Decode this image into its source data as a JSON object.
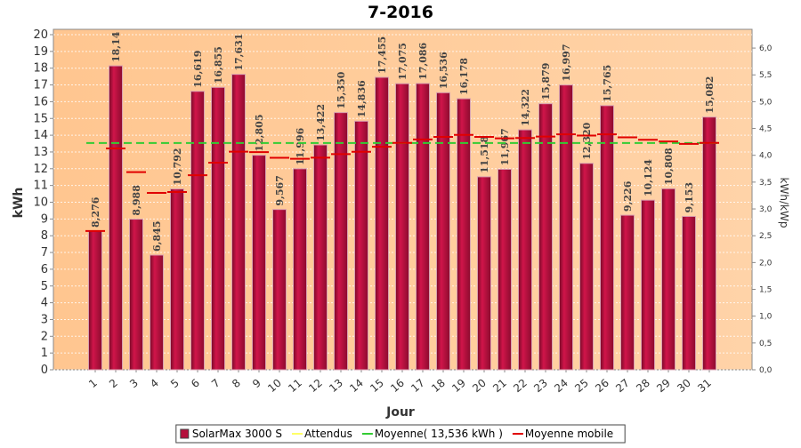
{
  "chart_data": {
    "type": "bar",
    "title": "7-2016",
    "x_label": "Jour",
    "y_label": "kWh",
    "y2_label": "kWh/kWp",
    "categories": [
      "1",
      "2",
      "3",
      "4",
      "5",
      "6",
      "7",
      "8",
      "9",
      "10",
      "11",
      "12",
      "13",
      "14",
      "15",
      "16",
      "17",
      "18",
      "19",
      "20",
      "21",
      "22",
      "23",
      "24",
      "25",
      "26",
      "27",
      "28",
      "29",
      "30",
      "31"
    ],
    "ylim": [
      0,
      20
    ],
    "yticks": [
      0,
      1,
      2,
      3,
      4,
      5,
      6,
      7,
      8,
      9,
      10,
      11,
      12,
      13,
      14,
      15,
      16,
      17,
      18,
      19,
      20
    ],
    "y2lim": [
      0,
      6.25
    ],
    "y2ticks": [
      {
        "value": 0,
        "label": "0,0"
      },
      {
        "value": 0.5,
        "label": "0,5"
      },
      {
        "value": 1,
        "label": "1,0"
      },
      {
        "value": 1.5,
        "label": "1,5"
      },
      {
        "value": 2,
        "label": "2,0"
      },
      {
        "value": 2.5,
        "label": "2,5"
      },
      {
        "value": 3,
        "label": "3,0"
      },
      {
        "value": 3.5,
        "label": "3,5"
      },
      {
        "value": 4,
        "label": "4,0"
      },
      {
        "value": 4.5,
        "label": "4,5"
      },
      {
        "value": 5,
        "label": "5,0"
      },
      {
        "value": 5.5,
        "label": "5,5"
      },
      {
        "value": 6,
        "label": "6,0"
      }
    ],
    "grid": true,
    "series": [
      {
        "name": "SolarMax 3000 S",
        "color": "#b5103c",
        "type": "bar",
        "values": [
          8.276,
          18.14,
          8.988,
          6.845,
          10.792,
          16.619,
          16.855,
          17.631,
          12.805,
          9.567,
          11.996,
          13.422,
          15.35,
          14.836,
          17.455,
          17.075,
          17.086,
          16.536,
          16.178,
          11.518,
          11.967,
          14.322,
          15.879,
          16.997,
          12.32,
          15.765,
          9.226,
          10.124,
          10.808,
          9.153,
          15.082
        ],
        "value_labels": [
          "8,276",
          "18,14",
          "8,988",
          "6,845",
          "10,792",
          "16,619",
          "16,855",
          "17,631",
          "12,805",
          "9,567",
          "11,996",
          "13,422",
          "15,350",
          "14,836",
          "17,455",
          "17,075",
          "17,086",
          "16,536",
          "16,178",
          "11,518",
          "11,967",
          "14,322",
          "15,879",
          "16,997",
          "12,320",
          "15,765",
          "9,226",
          "10,124",
          "10,808",
          "9,153",
          "15,082"
        ]
      },
      {
        "name": "Attendus",
        "color": "#ffff66",
        "type": "legend"
      },
      {
        "name": "Moyenne( 13,536 kWh )",
        "color": "#33cc33",
        "type": "hline",
        "value": 13.536
      },
      {
        "name": "Moyenne mobile",
        "color": "#e00000",
        "type": "step",
        "values": [
          8.28,
          13.21,
          11.8,
          10.56,
          10.61,
          11.61,
          12.36,
          13.02,
          12.99,
          12.65,
          12.59,
          12.66,
          12.87,
          13.01,
          13.31,
          13.54,
          13.75,
          13.9,
          14.02,
          13.9,
          13.81,
          13.83,
          13.92,
          14.05,
          13.98,
          14.05,
          13.87,
          13.73,
          13.63,
          13.48,
          13.54
        ]
      }
    ]
  }
}
